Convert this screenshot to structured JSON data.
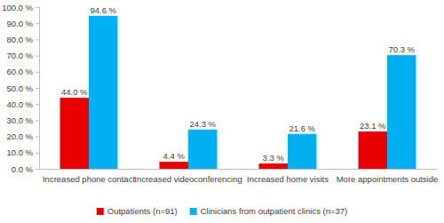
{
  "chart_data": {
    "type": "bar",
    "categories": [
      "Increased phone contact",
      "Increased videoconferencing",
      "Increased home visits",
      "More appointments outside"
    ],
    "series": [
      {
        "name": "Outpatients (n=91)",
        "color": "#e60000",
        "values": [
          44.0,
          4.4,
          3.3,
          23.1
        ],
        "value_labels": [
          "44.0 %",
          "4.4 %",
          "3.3 %",
          "23.1 %"
        ]
      },
      {
        "name": "Clinicians from outpatient clinics (n=37)",
        "color": "#00b0f0",
        "values": [
          94.6,
          24.3,
          21.6,
          70.3
        ],
        "value_labels": [
          "94.6 %",
          "24.3 %",
          "21.6 %",
          "70.3 %"
        ]
      }
    ],
    "ylim": [
      0,
      100
    ],
    "yticks": [
      {
        "value": 0,
        "label": "0.0 %"
      },
      {
        "value": 10,
        "label": "10.0 %"
      },
      {
        "value": 20,
        "label": "20.0 %"
      },
      {
        "value": 30,
        "label": "30.0 %"
      },
      {
        "value": 40,
        "label": "40.0 %"
      },
      {
        "value": 50,
        "label": "50.0 %"
      },
      {
        "value": 60,
        "label": "60.0 %"
      },
      {
        "value": 70,
        "label": "70.0 %"
      },
      {
        "value": 80,
        "label": "80.0 %"
      },
      {
        "value": 90,
        "label": "90.0 %"
      },
      {
        "value": 100,
        "label": "100.0 %"
      }
    ],
    "grid": false,
    "legend": "bottom",
    "data_labels": true
  }
}
